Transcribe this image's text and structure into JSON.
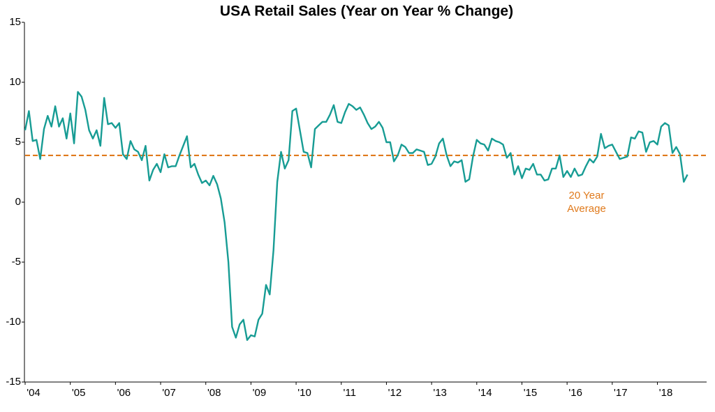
{
  "chart_data": {
    "type": "line",
    "title": "USA Retail Sales (Year on Year % Change)",
    "categories": [
      "'04",
      null,
      null,
      null,
      null,
      null,
      null,
      null,
      null,
      null,
      null,
      null,
      "'05",
      null,
      null,
      null,
      null,
      null,
      null,
      null,
      null,
      null,
      null,
      null,
      "'06",
      null,
      null,
      null,
      null,
      null,
      null,
      null,
      null,
      null,
      null,
      null,
      "'07",
      null,
      null,
      null,
      null,
      null,
      null,
      null,
      null,
      null,
      null,
      null,
      "'08",
      null,
      null,
      null,
      null,
      null,
      null,
      null,
      null,
      null,
      null,
      null,
      "'09",
      null,
      null,
      null,
      null,
      null,
      null,
      null,
      null,
      null,
      null,
      null,
      "'10",
      null,
      null,
      null,
      null,
      null,
      null,
      null,
      null,
      null,
      null,
      null,
      "'11",
      null,
      null,
      null,
      null,
      null,
      null,
      null,
      null,
      null,
      null,
      null,
      "'12",
      null,
      null,
      null,
      null,
      null,
      null,
      null,
      null,
      null,
      null,
      null,
      "'13",
      null,
      null,
      null,
      null,
      null,
      null,
      null,
      null,
      null,
      null,
      null,
      "'14",
      null,
      null,
      null,
      null,
      null,
      null,
      null,
      null,
      null,
      null,
      null,
      "'15",
      null,
      null,
      null,
      null,
      null,
      null,
      null,
      null,
      null,
      null,
      null,
      "'16",
      null,
      null,
      null,
      null,
      null,
      null,
      null,
      null,
      null,
      null,
      null,
      "'17",
      null,
      null,
      null,
      null,
      null,
      null,
      null,
      null,
      null,
      null,
      null,
      "'18",
      null,
      null,
      null,
      null,
      null,
      null,
      null,
      null
    ],
    "series": [
      {
        "color": "#179c94",
        "values": [
          6.0,
          7.6,
          5.1,
          5.2,
          3.6,
          6.1,
          7.2,
          6.3,
          8.0,
          6.3,
          7.0,
          5.3,
          7.4,
          4.9,
          9.2,
          8.8,
          7.7,
          6.0,
          5.3,
          6.0,
          4.7,
          8.7,
          6.5,
          6.6,
          6.2,
          6.6,
          4.0,
          3.6,
          5.1,
          4.4,
          4.2,
          3.5,
          4.7,
          1.8,
          2.7,
          3.2,
          2.5,
          4.0,
          2.9,
          3.0,
          3.0,
          3.9,
          4.7,
          5.5,
          2.9,
          3.2,
          2.3,
          1.6,
          1.8,
          1.4,
          2.2,
          1.5,
          0.3,
          -1.7,
          -5.0,
          -10.4,
          -11.3,
          -10.2,
          -9.8,
          -11.5,
          -11.1,
          -11.2,
          -9.8,
          -9.3,
          -6.9,
          -7.7,
          -4.0,
          1.7,
          4.2,
          2.8,
          3.5,
          7.6,
          7.8,
          6.0,
          4.2,
          4.1,
          2.9,
          6.1,
          6.4,
          6.7,
          6.7,
          7.3,
          8.1,
          6.7,
          6.6,
          7.5,
          8.2,
          8.0,
          7.7,
          7.9,
          7.3,
          6.6,
          6.1,
          6.3,
          6.7,
          6.2,
          5.0,
          5.0,
          3.4,
          3.9,
          4.8,
          4.6,
          4.1,
          4.1,
          4.4,
          4.3,
          4.2,
          3.1,
          3.2,
          3.8,
          4.9,
          5.3,
          3.9,
          3.0,
          3.4,
          3.3,
          3.5,
          1.7,
          1.9,
          3.8,
          5.2,
          4.9,
          4.8,
          4.3,
          5.3,
          5.1,
          5.0,
          4.8,
          3.7,
          4.1,
          2.3,
          3.0,
          2.0,
          2.8,
          2.7,
          3.2,
          2.3,
          2.3,
          1.8,
          1.9,
          2.8,
          2.8,
          3.9,
          2.1,
          2.6,
          2.1,
          2.8,
          2.2,
          2.3,
          3.0,
          3.6,
          3.3,
          3.8,
          5.7,
          4.5,
          4.7,
          4.8,
          4.2,
          3.6,
          3.7,
          3.8,
          5.4,
          5.3,
          5.9,
          5.8,
          4.2,
          5.0,
          5.1,
          4.8,
          6.3,
          6.6,
          6.4,
          4.1,
          4.6,
          4.0,
          1.7,
          2.3
        ]
      }
    ],
    "reference_line": {
      "value": 3.9,
      "color": "#e07a1c",
      "label": [
        "20 Year",
        "Average"
      ]
    },
    "ylim": [
      -15,
      15
    ],
    "yticks": [
      -15,
      -10,
      -5,
      0,
      5,
      10,
      15
    ],
    "grid": false
  }
}
